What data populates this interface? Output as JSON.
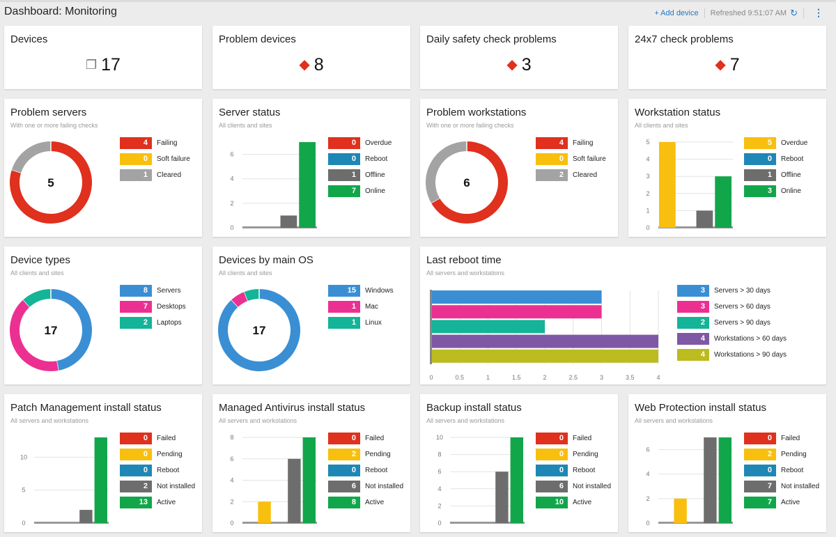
{
  "header": {
    "title": "Dashboard: Monitoring",
    "add_device": "+ Add device",
    "refreshed": "Refreshed 9:51:07 AM",
    "refresh_icon": "refresh-icon",
    "menu_icon": "more-vertical-icon"
  },
  "colors": {
    "red": "#e0301e",
    "yellow": "#f9bf0f",
    "blue": "#1e87b5",
    "gray": "#6d6d6d",
    "green": "#12a64b",
    "lightgray": "#a3a3a3",
    "sky": "#3a8fd4",
    "pink": "#ec3092",
    "teal": "#13b497",
    "purple": "#7f58a5",
    "olive": "#bcbb1f",
    "accent": "#1e78c8"
  },
  "cards": [
    {
      "type": "stat",
      "title": "Devices",
      "value": "17",
      "icon": "devices-icon"
    },
    {
      "type": "stat",
      "title": "Problem devices",
      "value": "8",
      "icon": "alert-icon"
    },
    {
      "type": "stat",
      "title": "Daily safety check problems",
      "value": "3",
      "icon": "alert-icon"
    },
    {
      "type": "stat",
      "title": "24x7 check problems",
      "value": "7",
      "icon": "alert-icon"
    },
    {
      "type": "donut",
      "title": "Problem servers",
      "subtitle": "With one or more failing checks",
      "center": "5",
      "items": [
        {
          "label": "Failing",
          "value": 4,
          "color": "red"
        },
        {
          "label": "Soft failure",
          "value": 0,
          "color": "yellow"
        },
        {
          "label": "Cleared",
          "value": 1,
          "color": "lightgray"
        }
      ]
    },
    {
      "type": "vbar",
      "title": "Server status",
      "subtitle": "All clients and sites",
      "ticks": [
        0,
        2,
        4,
        6
      ],
      "ymax": 7,
      "items": [
        {
          "label": "Overdue",
          "value": 0,
          "color": "red"
        },
        {
          "label": "Reboot",
          "value": 0,
          "color": "blue"
        },
        {
          "label": "Offline",
          "value": 1,
          "color": "gray"
        },
        {
          "label": "Online",
          "value": 7,
          "color": "green"
        }
      ]
    },
    {
      "type": "donut",
      "title": "Problem workstations",
      "subtitle": "With one or more failing checks",
      "center": "6",
      "items": [
        {
          "label": "Failing",
          "value": 4,
          "color": "red"
        },
        {
          "label": "Soft failure",
          "value": 0,
          "color": "yellow"
        },
        {
          "label": "Cleared",
          "value": 2,
          "color": "lightgray"
        }
      ]
    },
    {
      "type": "vbar",
      "title": "Workstation status",
      "subtitle": "All clients and sites",
      "ticks": [
        0,
        1,
        2,
        3,
        4,
        5
      ],
      "ymax": 5,
      "items": [
        {
          "label": "Overdue",
          "value": 5,
          "color": "yellow"
        },
        {
          "label": "Reboot",
          "value": 0,
          "color": "blue"
        },
        {
          "label": "Offline",
          "value": 1,
          "color": "gray"
        },
        {
          "label": "Online",
          "value": 3,
          "color": "green"
        }
      ]
    },
    {
      "type": "donut",
      "title": "Device types",
      "subtitle": "All clients and sites",
      "center": "17",
      "items": [
        {
          "label": "Servers",
          "value": 8,
          "color": "sky"
        },
        {
          "label": "Desktops",
          "value": 7,
          "color": "pink"
        },
        {
          "label": "Laptops",
          "value": 2,
          "color": "teal"
        }
      ]
    },
    {
      "type": "donut",
      "title": "Devices by main OS",
      "subtitle": "All clients and sites",
      "center": "17",
      "items": [
        {
          "label": "Windows",
          "value": 15,
          "color": "sky"
        },
        {
          "label": "Mac",
          "value": 1,
          "color": "pink"
        },
        {
          "label": "Linux",
          "value": 1,
          "color": "teal"
        }
      ]
    },
    {
      "type": "hbar",
      "title": "Last reboot time",
      "subtitle": "All servers and workstations",
      "ticks": [
        "0",
        "0.5",
        "1",
        "1.5",
        "2",
        "2.5",
        "3",
        "3.5",
        "4"
      ],
      "xmax": 4,
      "items": [
        {
          "label": "Servers > 30 days",
          "value": 3,
          "color": "sky"
        },
        {
          "label": "Servers > 60 days",
          "value": 3,
          "color": "pink"
        },
        {
          "label": "Servers > 90 days",
          "value": 2,
          "color": "teal"
        },
        {
          "label": "Workstations > 60 days",
          "value": 4,
          "color": "purple"
        },
        {
          "label": "Workstations > 90 days",
          "value": 4,
          "color": "olive"
        }
      ]
    },
    {
      "type": "vbar",
      "title": "Patch Management install status",
      "subtitle": "All servers and workstations",
      "ticks": [
        0,
        5,
        10
      ],
      "ymax": 13,
      "items": [
        {
          "label": "Failed",
          "value": 0,
          "color": "red"
        },
        {
          "label": "Pending",
          "value": 0,
          "color": "yellow"
        },
        {
          "label": "Reboot",
          "value": 0,
          "color": "blue"
        },
        {
          "label": "Not installed",
          "value": 2,
          "color": "gray"
        },
        {
          "label": "Active",
          "value": 13,
          "color": "green"
        }
      ]
    },
    {
      "type": "vbar",
      "title": "Managed Antivirus install status",
      "subtitle": "All servers and workstations",
      "ticks": [
        0,
        2,
        4,
        6,
        8
      ],
      "ymax": 8,
      "items": [
        {
          "label": "Failed",
          "value": 0,
          "color": "red"
        },
        {
          "label": "Pending",
          "value": 2,
          "color": "yellow"
        },
        {
          "label": "Reboot",
          "value": 0,
          "color": "blue"
        },
        {
          "label": "Not installed",
          "value": 6,
          "color": "gray"
        },
        {
          "label": "Active",
          "value": 8,
          "color": "green"
        }
      ]
    },
    {
      "type": "vbar",
      "title": "Backup install status",
      "subtitle": "All servers and workstations",
      "ticks": [
        0,
        2,
        4,
        6,
        8,
        10
      ],
      "ymax": 10,
      "items": [
        {
          "label": "Failed",
          "value": 0,
          "color": "red"
        },
        {
          "label": "Pending",
          "value": 0,
          "color": "yellow"
        },
        {
          "label": "Reboot",
          "value": 0,
          "color": "blue"
        },
        {
          "label": "Not installed",
          "value": 6,
          "color": "gray"
        },
        {
          "label": "Active",
          "value": 10,
          "color": "green"
        }
      ]
    },
    {
      "type": "vbar",
      "title": "Web Protection install status",
      "subtitle": "All servers and workstations",
      "ticks": [
        0,
        2,
        4,
        6
      ],
      "ymax": 7,
      "items": [
        {
          "label": "Failed",
          "value": 0,
          "color": "red"
        },
        {
          "label": "Pending",
          "value": 2,
          "color": "yellow"
        },
        {
          "label": "Reboot",
          "value": 0,
          "color": "blue"
        },
        {
          "label": "Not installed",
          "value": 7,
          "color": "gray"
        },
        {
          "label": "Active",
          "value": 7,
          "color": "green"
        }
      ]
    }
  ]
}
